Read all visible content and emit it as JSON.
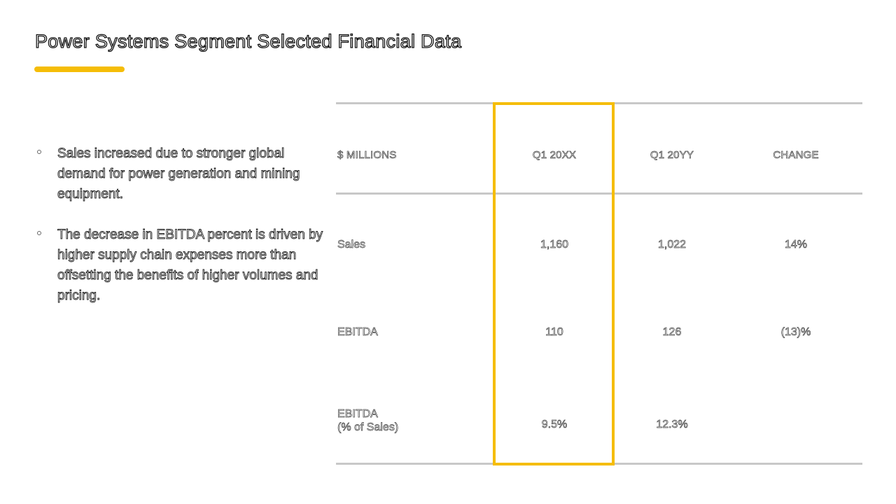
{
  "slide": {
    "title": "Power Systems Segment Selected Financial Data",
    "accent_color": "#f5bd08"
  },
  "bullets": [
    "Sales increased due to stronger global demand for power generation and mining equipment.",
    "The decrease in EBITDA percent is driven by higher supply chain expenses more than offsetting the benefits of higher volumes and pricing."
  ],
  "table": {
    "headers": [
      "$ MILLIONS",
      "Q1 20XX",
      "Q1 20YY",
      "CHANGE"
    ],
    "rows": [
      {
        "label": "Sales",
        "label_line2": "",
        "q1xx": "1,160",
        "q1yy": "1,022",
        "change": "14%"
      },
      {
        "label": "EBITDA",
        "label_line2": "",
        "q1xx": "110",
        "q1yy": "126",
        "change": "(13)%"
      },
      {
        "label": "EBITDA",
        "label_line2": "(% of Sales)",
        "q1xx": "9.5%",
        "q1yy": "12.3%",
        "change": ""
      }
    ],
    "highlighted_column": "Q1 20XX"
  }
}
